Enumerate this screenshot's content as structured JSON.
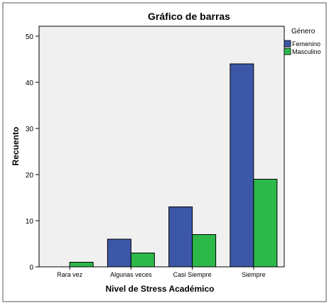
{
  "chart_data": {
    "type": "bar",
    "title": "Gráfico de barras",
    "xlabel": "Nivel de Stress Académico",
    "ylabel": "Recuento",
    "categories": [
      "Rara vez",
      "Algunas veces",
      "Casi Siempre",
      "Siempre"
    ],
    "series": [
      {
        "name": "Femenino",
        "values": [
          0,
          6,
          13,
          44
        ],
        "color": "#3c57a8"
      },
      {
        "name": "Masculino",
        "values": [
          1,
          3,
          7,
          19
        ],
        "color": "#2db84a"
      }
    ],
    "ylim": [
      0,
      50
    ],
    "yticks": [
      0,
      10,
      20,
      30,
      40,
      50
    ],
    "legend_title": "Género",
    "legend_position": "right",
    "plot_background": "#f0f0f0",
    "grid": false
  }
}
